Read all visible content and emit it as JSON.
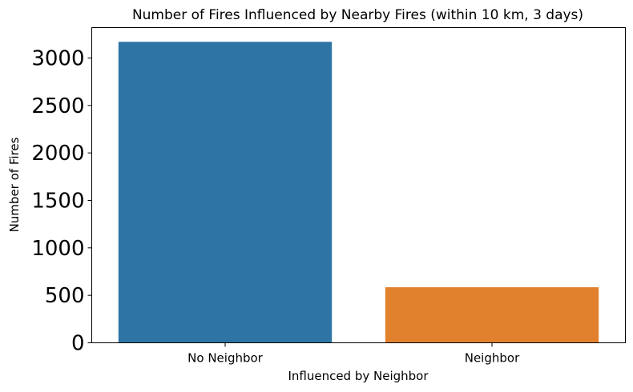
{
  "chart_data": {
    "type": "bar",
    "title": "Number of Fires Influenced by Nearby Fires (within 10 km, 3 days)",
    "xlabel": "Influenced by Neighbor",
    "ylabel": "Number of Fires",
    "categories": [
      "No Neighbor",
      "Neighbor"
    ],
    "values": [
      3170,
      585
    ],
    "colors": [
      "#2e75a6",
      "#e2812d"
    ],
    "ylim": [
      0,
      3320
    ],
    "yticks": [
      0,
      500,
      1000,
      1500,
      2000,
      2500,
      3000
    ],
    "grid": false,
    "legend": "none"
  }
}
